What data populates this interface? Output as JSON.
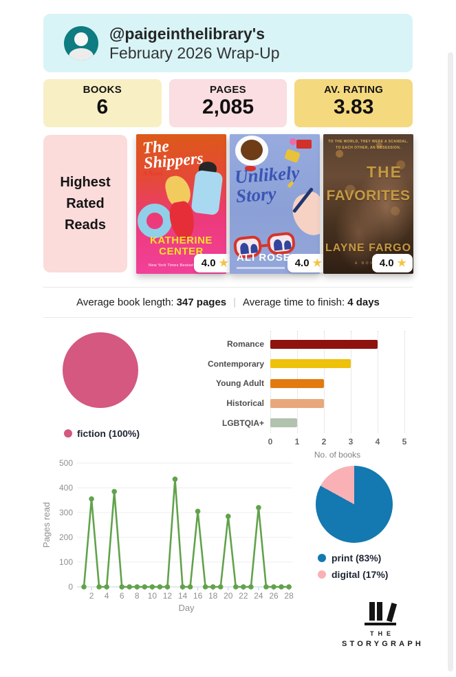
{
  "header": {
    "username": "@paigeinthelibrary's",
    "title": "February 2026 Wrap-Up",
    "bg": "#d8f4f7",
    "avatar_color": "#0e7c80"
  },
  "stats": [
    {
      "label": "BOOKS",
      "value": "6",
      "bg": "#f9efc5"
    },
    {
      "label": "PAGES",
      "value": "2,085",
      "bg": "#fadee2"
    },
    {
      "label": "AV. RATING",
      "value": "3.83",
      "bg": "#f5d97f"
    }
  ],
  "highest_rated": {
    "heading": "Highest Rated Reads",
    "bg": "#fcdbdb",
    "star_color": "#f6c544",
    "books": [
      {
        "title": "The Shippers",
        "subtitle": "A Novel",
        "author": "KATHERINE CENTER",
        "caption": "New York Times Bestselling Author",
        "rating": "4.0"
      },
      {
        "title": "Unlikely Story",
        "author": "ALI ROSEN",
        "rating": "4.0"
      },
      {
        "title_lines": [
          "THE",
          "FAVORITES"
        ],
        "tagline1": "TO THE WORLD, THEY WERE A SCANDAL.",
        "tagline2": "TO EACH OTHER, AN OBSESSION.",
        "author": "LAYNE FARGO",
        "subtitle": "A NOVEL",
        "rating": "4.0"
      }
    ]
  },
  "averages": {
    "length_label": "Average book length:",
    "length_value": "347 pages",
    "separator": "|",
    "finish_label": "Average time to finish:",
    "finish_value": "4 days"
  },
  "chart_data": [
    {
      "type": "pie",
      "name": "genre-share",
      "slices": [
        {
          "label": "fiction (100%)",
          "value": 100,
          "color": "#d4587f"
        }
      ],
      "legend_position": "bottom"
    },
    {
      "type": "bar",
      "name": "genres",
      "orientation": "horizontal",
      "categories": [
        "Romance",
        "Contemporary",
        "Young Adult",
        "Historical",
        "LGBTQIA+"
      ],
      "values": [
        4,
        3,
        2,
        2,
        1
      ],
      "colors": [
        "#8e130e",
        "#eec10a",
        "#e27a10",
        "#e8a87b",
        "#b1c2ae"
      ],
      "xlabel": "No. of books",
      "xlim": [
        0,
        5
      ],
      "xticks": [
        0,
        1,
        2,
        3,
        4,
        5
      ],
      "grid": "dotted-vertical"
    },
    {
      "type": "line",
      "name": "pages-per-day",
      "x": [
        1,
        2,
        3,
        4,
        5,
        6,
        7,
        8,
        9,
        10,
        11,
        12,
        13,
        14,
        15,
        16,
        17,
        18,
        19,
        20,
        21,
        22,
        23,
        24,
        25,
        26,
        27,
        28
      ],
      "y": [
        0,
        355,
        0,
        0,
        385,
        0,
        0,
        0,
        0,
        0,
        0,
        0,
        435,
        0,
        0,
        305,
        0,
        0,
        0,
        285,
        0,
        0,
        0,
        320,
        0,
        0,
        0,
        0
      ],
      "xlabel": "Day",
      "ylabel": "Pages read",
      "ylim": [
        0,
        500
      ],
      "yticks": [
        0,
        100,
        200,
        300,
        400,
        500
      ],
      "xticks": [
        2,
        4,
        6,
        8,
        10,
        12,
        14,
        16,
        18,
        20,
        22,
        24,
        26,
        28
      ],
      "color": "#61a24b",
      "marker": "circle",
      "grid": "horizontal"
    },
    {
      "type": "pie",
      "name": "format-share",
      "slices": [
        {
          "label": "print (83%)",
          "value": 83,
          "color": "#1478b1"
        },
        {
          "label": "digital (17%)",
          "value": 17,
          "color": "#f9b1b6"
        }
      ],
      "legend_position": "bottom"
    }
  ],
  "logo": {
    "word1": "THE",
    "word2": "STORYGRAPH"
  }
}
